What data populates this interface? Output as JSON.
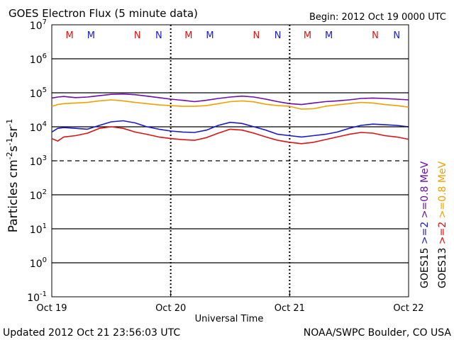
{
  "header": {
    "title": "GOES Electron Flux (5 minute data)",
    "begin": "Begin: 2012 Oct 19 0000 UTC"
  },
  "footer": {
    "updated": "Updated 2012 Oct 21 23:56:03 UTC",
    "source": "NOAA/SWPC Boulder, CO USA"
  },
  "chart_data": {
    "type": "line",
    "title": "GOES Electron Flux (5 minute data)",
    "xlabel": "Universal Time",
    "ylabel_parts": [
      "Particles cm",
      "-2",
      "s",
      "-1",
      "sr",
      "-1"
    ],
    "yscale": "log",
    "ylim": [
      0.1,
      10000000
    ],
    "xlim": [
      0,
      3
    ],
    "x_tick_labels": [
      "Oct 19",
      "Oct 20",
      "Oct 21",
      "Oct 22"
    ],
    "y_ticks": [
      {
        "value": 10000000,
        "base": "10",
        "exp": "7"
      },
      {
        "value": 1000000,
        "base": "10",
        "exp": "6"
      },
      {
        "value": 100000,
        "base": "10",
        "exp": "5"
      },
      {
        "value": 10000,
        "base": "10",
        "exp": "4"
      },
      {
        "value": 1000,
        "base": "10",
        "exp": "3"
      },
      {
        "value": 100,
        "base": "10",
        "exp": "2"
      },
      {
        "value": 10,
        "base": "10",
        "exp": "1"
      },
      {
        "value": 1,
        "base": "10",
        "exp": "0"
      },
      {
        "value": 0.1,
        "base": "10",
        "exp": "-1"
      }
    ],
    "threshold_line": 1000,
    "grid": "horizontal solid lines at decades, dashed at 1000; dashed vertical day separators",
    "legend_placement": "right, vertical text",
    "legend": [
      {
        "label": "GOES15",
        "color": "#000000"
      },
      {
        "label": ">=2",
        "color": "#1a1acc"
      },
      {
        "label": ">=0.8 MeV",
        "color": "#6a0dad"
      },
      {
        "label": "GOES13",
        "color": "#000000"
      },
      {
        "label": ">=2",
        "color": "#dd1111"
      },
      {
        "label": ">=0.8 MeV",
        "color": "#f0a000"
      }
    ],
    "markers": [
      {
        "x": 0.15,
        "label": "M",
        "color": "#dd1111"
      },
      {
        "x": 0.33,
        "label": "M",
        "color": "#1a1acc"
      },
      {
        "x": 0.72,
        "label": "N",
        "color": "#dd1111"
      },
      {
        "x": 0.9,
        "label": "N",
        "color": "#1a1acc"
      },
      {
        "x": 1.15,
        "label": "M",
        "color": "#dd1111"
      },
      {
        "x": 1.33,
        "label": "M",
        "color": "#1a1acc"
      },
      {
        "x": 1.72,
        "label": "N",
        "color": "#dd1111"
      },
      {
        "x": 1.9,
        "label": "N",
        "color": "#1a1acc"
      },
      {
        "x": 2.15,
        "label": "M",
        "color": "#dd1111"
      },
      {
        "x": 2.33,
        "label": "M",
        "color": "#1a1acc"
      },
      {
        "x": 2.72,
        "label": "N",
        "color": "#dd1111"
      },
      {
        "x": 2.9,
        "label": "N",
        "color": "#1a1acc"
      }
    ],
    "x": [
      0,
      0.05,
      0.1,
      0.2,
      0.3,
      0.4,
      0.5,
      0.6,
      0.7,
      0.8,
      0.9,
      1.0,
      1.1,
      1.2,
      1.3,
      1.4,
      1.5,
      1.6,
      1.7,
      1.8,
      1.9,
      2.0,
      2.1,
      2.2,
      2.3,
      2.4,
      2.5,
      2.6,
      2.7,
      2.8,
      2.9,
      3.0
    ],
    "series": [
      {
        "name": "GOES15 >=0.8 MeV",
        "color": "#6a0dad",
        "values": [
          70000,
          75000,
          78000,
          72000,
          75000,
          82000,
          90000,
          92000,
          88000,
          80000,
          72000,
          65000,
          60000,
          55000,
          60000,
          68000,
          75000,
          80000,
          75000,
          65000,
          55000,
          48000,
          45000,
          50000,
          55000,
          58000,
          62000,
          68000,
          70000,
          68000,
          65000,
          62000
        ]
      },
      {
        "name": "GOES13 >=0.8 MeV",
        "color": "#f0a000",
        "values": [
          40000,
          45000,
          48000,
          50000,
          52000,
          58000,
          62000,
          58000,
          52000,
          48000,
          44000,
          42000,
          40000,
          40000,
          42000,
          48000,
          55000,
          58000,
          54000,
          46000,
          42000,
          40000,
          33000,
          34000,
          40000,
          44000,
          48000,
          52000,
          50000,
          45000,
          42000,
          38000
        ]
      },
      {
        "name": "GOES15 >=2 MeV",
        "color": "#1a1acc",
        "values": [
          7000,
          9000,
          9500,
          9000,
          8500,
          11000,
          14000,
          15000,
          13000,
          10000,
          8500,
          7500,
          7000,
          6800,
          8000,
          11000,
          13500,
          12500,
          10000,
          8000,
          6000,
          5500,
          5000,
          5500,
          6000,
          7000,
          9000,
          11000,
          12000,
          11500,
          11000,
          10000
        ]
      },
      {
        "name": "GOES13 >=2 MeV",
        "color": "#dd1111",
        "values": [
          4500,
          3800,
          5000,
          5500,
          6500,
          9000,
          10000,
          9000,
          7000,
          6000,
          5000,
          4500,
          4200,
          4000,
          4800,
          6500,
          8500,
          8000,
          6500,
          5000,
          4000,
          3500,
          3200,
          3500,
          4200,
          5000,
          6000,
          6800,
          6500,
          5500,
          5000,
          4300
        ]
      }
    ]
  }
}
